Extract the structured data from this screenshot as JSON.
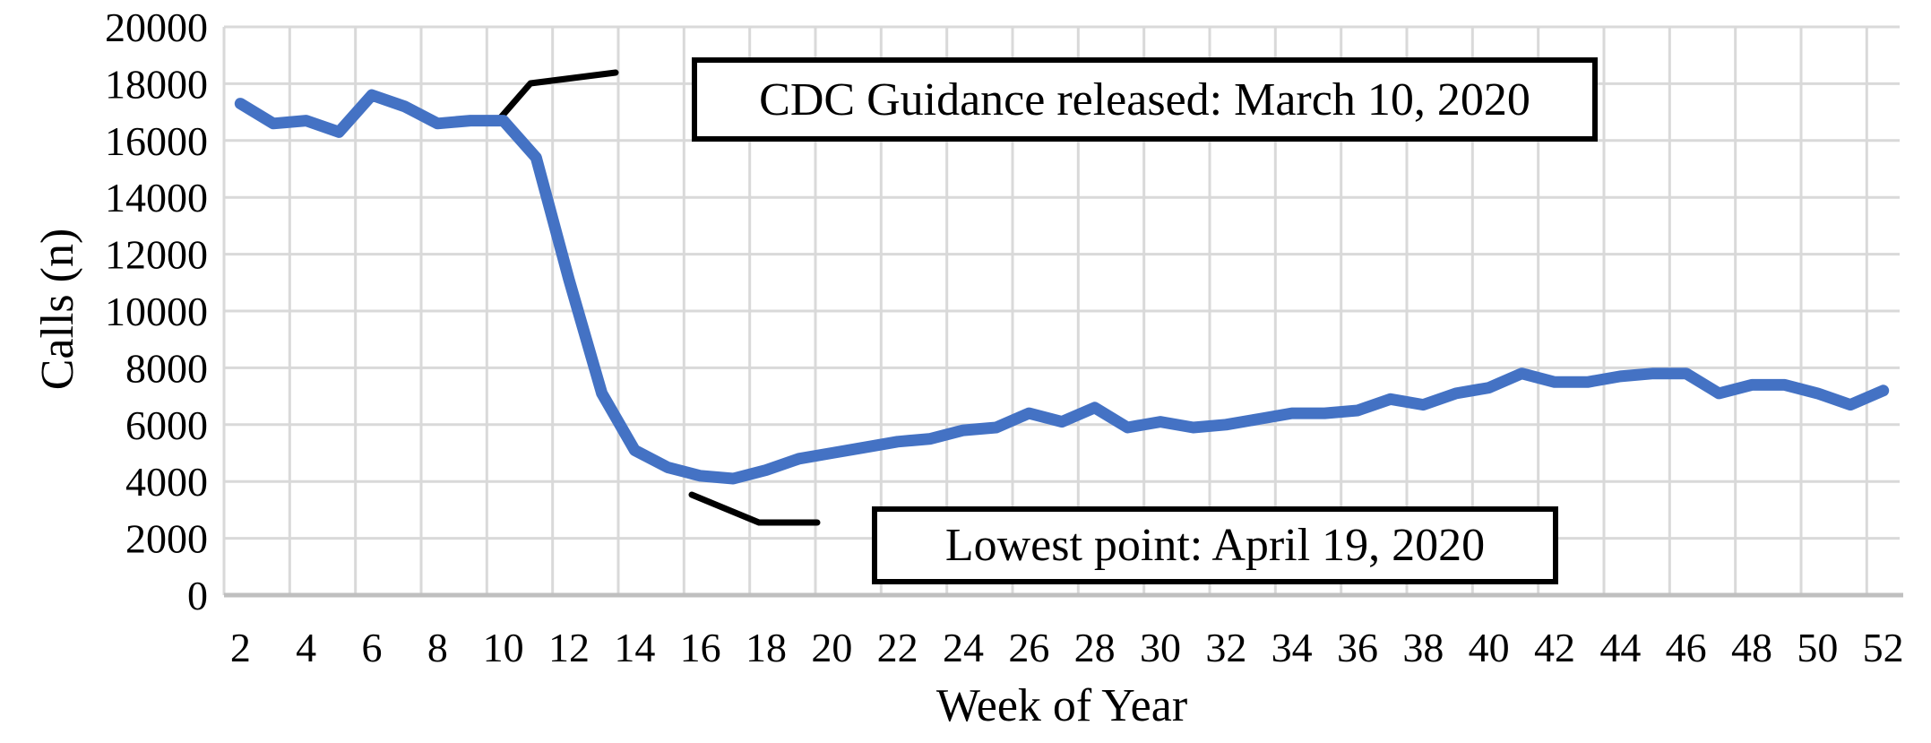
{
  "chart_data": {
    "type": "line",
    "title": "",
    "xlabel": "Week of Year",
    "ylabel": "Calls (n)",
    "series": [
      {
        "name": "Calls",
        "x": [
          2,
          3,
          4,
          5,
          6,
          7,
          8,
          9,
          10,
          11,
          12,
          13,
          14,
          15,
          16,
          17,
          18,
          19,
          20,
          21,
          22,
          23,
          24,
          25,
          26,
          27,
          28,
          29,
          30,
          31,
          32,
          33,
          34,
          35,
          36,
          37,
          38,
          39,
          40,
          41,
          42,
          43,
          44,
          45,
          46,
          47,
          48,
          49,
          50,
          51,
          52
        ],
        "values": [
          17300,
          16600,
          16700,
          16300,
          17600,
          17200,
          16600,
          16700,
          16700,
          15400,
          11100,
          7100,
          5100,
          4500,
          4200,
          4100,
          4400,
          4800,
          5000,
          5200,
          5400,
          5500,
          5800,
          5900,
          6400,
          6100,
          6600,
          5900,
          6100,
          5900,
          6000,
          6200,
          6400,
          6400,
          6500,
          6900,
          6700,
          7100,
          7300,
          7800,
          7500,
          7500,
          7700,
          7800,
          7800,
          7100,
          7400,
          7400,
          7100,
          6700,
          7200
        ]
      }
    ],
    "xlim": [
      2,
      52
    ],
    "ylim": [
      0,
      20000
    ],
    "x_ticks": [
      2,
      4,
      6,
      8,
      10,
      12,
      14,
      16,
      18,
      20,
      22,
      24,
      26,
      28,
      30,
      32,
      34,
      36,
      38,
      40,
      42,
      44,
      46,
      48,
      50,
      52
    ],
    "y_ticks": [
      0,
      2000,
      4000,
      6000,
      8000,
      10000,
      12000,
      14000,
      16000,
      18000,
      20000
    ],
    "grid": true,
    "legend": "none",
    "colors": {
      "line": "#4472C4",
      "gridline": "#D9D9D9",
      "axis_line": "#BFBFBF",
      "text": "#000000",
      "annotation_border": "#000000",
      "annotation_fill": "#FFFFFF"
    },
    "annotations": [
      {
        "id": "cdc",
        "text": "CDC Guidance released: March 10, 2020",
        "anchor_week": 10
      },
      {
        "id": "lowest",
        "text": "Lowest point: April 19, 2020",
        "anchor_week": 16
      }
    ]
  }
}
